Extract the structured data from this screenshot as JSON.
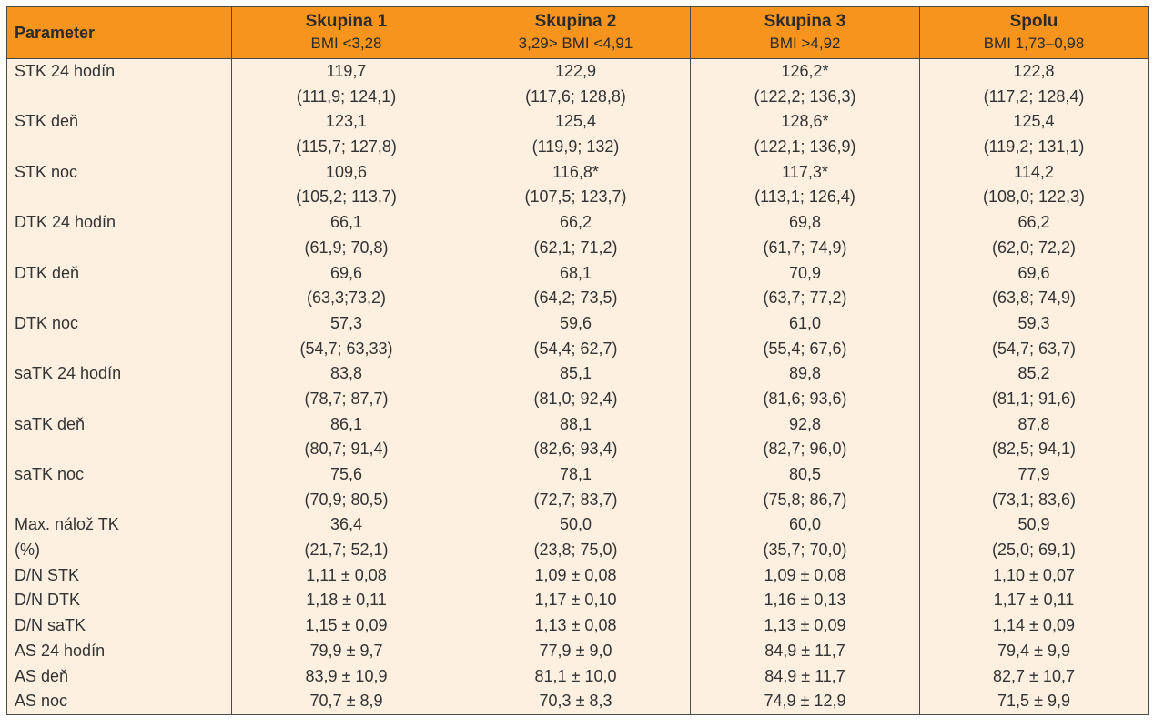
{
  "header": {
    "parameter": "Parameter",
    "groups": [
      {
        "name": "Skupina 1",
        "sub": "BMI <3,28"
      },
      {
        "name": "Skupina 2",
        "sub": "3,29> BMI <4,91"
      },
      {
        "name": "Skupina 3",
        "sub": "BMI >4,92"
      },
      {
        "name": "Spolu",
        "sub": "BMI 1,73–0,98"
      }
    ]
  },
  "rows": [
    {
      "label": [
        "STK 24 hodín"
      ],
      "values": [
        [
          "119,7",
          "(111,9; 124,1)"
        ],
        [
          "122,9",
          "(117,6; 128,8)"
        ],
        [
          "126,2*",
          "(122,2; 136,3)"
        ],
        [
          "122,8",
          "(117,2; 128,4)"
        ]
      ]
    },
    {
      "label": [
        "STK deň"
      ],
      "values": [
        [
          "123,1",
          "(115,7; 127,8)"
        ],
        [
          "125,4",
          "(119,9; 132)"
        ],
        [
          "128,6*",
          "(122,1; 136,9)"
        ],
        [
          "125,4",
          "(119,2; 131,1)"
        ]
      ]
    },
    {
      "label": [
        "STK noc"
      ],
      "values": [
        [
          "109,6",
          "(105,2; 113,7)"
        ],
        [
          "116,8*",
          "(107,5; 123,7)"
        ],
        [
          "117,3*",
          "(113,1; 126,4)"
        ],
        [
          "114,2",
          "(108,0; 122,3)"
        ]
      ]
    },
    {
      "label": [
        "DTK 24 hodín"
      ],
      "values": [
        [
          "66,1",
          "(61,9; 70,8)"
        ],
        [
          "66,2",
          "(62,1; 71,2)"
        ],
        [
          "69,8",
          "(61,7; 74,9)"
        ],
        [
          "66,2",
          "(62,0; 72,2)"
        ]
      ]
    },
    {
      "label": [
        "DTK deň"
      ],
      "values": [
        [
          "69,6",
          "(63,3;73,2)"
        ],
        [
          "68,1",
          "(64,2; 73,5)"
        ],
        [
          "70,9",
          "(63,7; 77,2)"
        ],
        [
          "69,6",
          "(63,8; 74,9)"
        ]
      ]
    },
    {
      "label": [
        "DTK noc"
      ],
      "values": [
        [
          "57,3",
          "(54,7; 63,33)"
        ],
        [
          "59,6",
          "(54,4; 62,7)"
        ],
        [
          "61,0",
          "(55,4; 67,6)"
        ],
        [
          "59,3",
          "(54,7; 63,7)"
        ]
      ]
    },
    {
      "label": [
        "saTK 24 hodín"
      ],
      "values": [
        [
          "83,8",
          "(78,7; 87,7)"
        ],
        [
          "85,1",
          "(81,0; 92,4)"
        ],
        [
          "89,8",
          "(81,6; 93,6)"
        ],
        [
          "85,2",
          "(81,1; 91,6)"
        ]
      ]
    },
    {
      "label": [
        "saTK deň"
      ],
      "values": [
        [
          "86,1",
          "(80,7; 91,4)"
        ],
        [
          "88,1",
          "(82,6; 93,4)"
        ],
        [
          "92,8",
          "(82,7; 96,0)"
        ],
        [
          "87,8",
          "(82,5; 94,1)"
        ]
      ]
    },
    {
      "label": [
        "saTK noc"
      ],
      "values": [
        [
          "75,6",
          "(70,9; 80,5)"
        ],
        [
          "78,1",
          "(72,7; 83,7)"
        ],
        [
          "80,5",
          "(75,8; 86,7)"
        ],
        [
          "77,9",
          "(73,1; 83,6)"
        ]
      ]
    },
    {
      "label": [
        "Max. nálož TK",
        "(%)"
      ],
      "values": [
        [
          "36,4",
          "(21,7; 52,1)"
        ],
        [
          "50,0",
          "(23,8; 75,0)"
        ],
        [
          "60,0",
          "(35,7; 70,0)"
        ],
        [
          "50,9",
          "(25,0; 69,1)"
        ]
      ]
    },
    {
      "label": [
        "D/N STK"
      ],
      "values": [
        [
          "1,11 ± 0,08"
        ],
        [
          "1,09 ± 0,08"
        ],
        [
          "1,09 ± 0,08"
        ],
        [
          "1,10 ± 0,07"
        ]
      ]
    },
    {
      "label": [
        "D/N DTK"
      ],
      "values": [
        [
          "1,18 ± 0,11"
        ],
        [
          "1,17 ± 0,10"
        ],
        [
          "1,16 ± 0,13"
        ],
        [
          "1,17 ± 0,11"
        ]
      ]
    },
    {
      "label": [
        "D/N saTK"
      ],
      "values": [
        [
          "1,15 ± 0,09"
        ],
        [
          "1,13 ± 0,08"
        ],
        [
          "1,13 ± 0,09"
        ],
        [
          "1,14 ± 0,09"
        ]
      ]
    },
    {
      "label": [
        "AS 24 hodín"
      ],
      "values": [
        [
          "79,9 ± 9,7"
        ],
        [
          "77,9 ± 9,0"
        ],
        [
          "84,9 ± 11,7"
        ],
        [
          "79,4 ± 9,9"
        ]
      ]
    },
    {
      "label": [
        "AS deň"
      ],
      "values": [
        [
          "83,9 ± 10,9"
        ],
        [
          "81,1 ± 10,0"
        ],
        [
          "84,9 ± 11,7"
        ],
        [
          "82,7 ± 10,7"
        ]
      ]
    },
    {
      "label": [
        "AS noc"
      ],
      "values": [
        [
          "70,7 ± 8,9"
        ],
        [
          "70,3 ± 8,3"
        ],
        [
          "74,9 ± 12,9"
        ],
        [
          "71,5 ± 9,9"
        ]
      ]
    }
  ],
  "colors": {
    "header_bg": "#F7941D",
    "body_bg": "#FDF0E0",
    "border": "#4a4a4a"
  }
}
